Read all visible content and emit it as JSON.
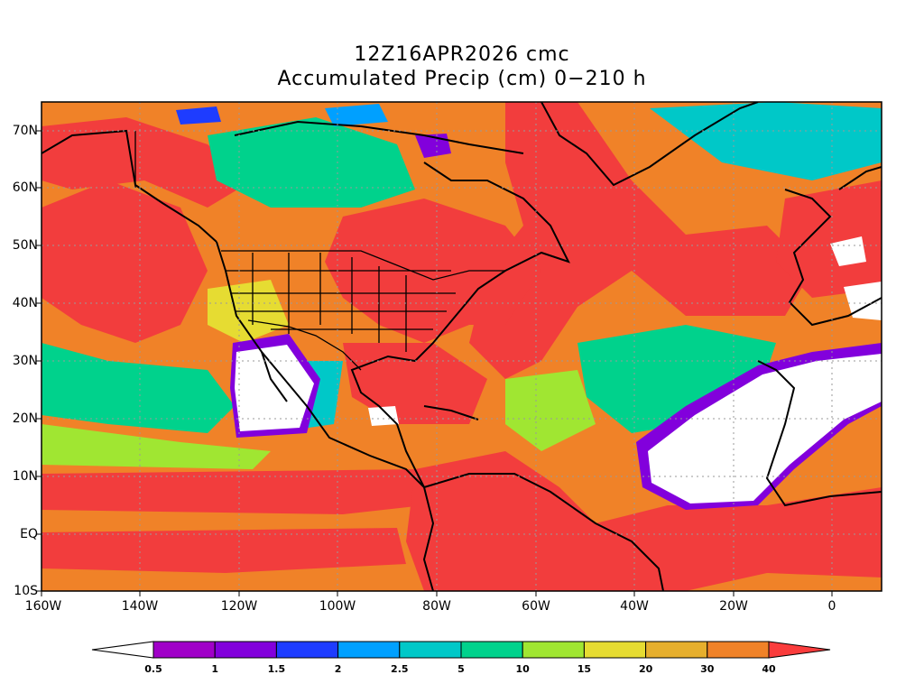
{
  "title": {
    "line1": "12Z16APR2026 cmc",
    "line2": "Accumulated Precip (cm) 0−210 h"
  },
  "axes": {
    "lat_labels": [
      "70N",
      "60N",
      "50N",
      "40N",
      "30N",
      "20N",
      "10N",
      "EQ",
      "10S"
    ],
    "lon_labels": [
      "160W",
      "140W",
      "120W",
      "100W",
      "80W",
      "60W",
      "40W",
      "20W",
      "0"
    ],
    "lat_range": [
      -10,
      75
    ],
    "lon_range": [
      -160,
      10
    ],
    "grid": "dotted"
  },
  "colorbar": {
    "labels": [
      "0.5",
      "1",
      "1.5",
      "2",
      "2.5",
      "5",
      "10",
      "15",
      "20",
      "30",
      "40"
    ],
    "colors": [
      "#a000c8",
      "#8200dc",
      "#1e3cff",
      "#00a0ff",
      "#00c8c8",
      "#00d28c",
      "#a0e632",
      "#e6dc32",
      "#e6af2d",
      "#f08228",
      "#fa3c3c"
    ],
    "below_color": "#ffffff",
    "above_color": "#fa3c3c"
  },
  "palette": {
    "red": "#f23d3d",
    "orange": "#f08228",
    "amber": "#e6af2d",
    "yellow": "#e6dc32",
    "lime": "#a0e632",
    "green": "#00d28c",
    "teal": "#00c8c8",
    "cyan": "#00a0ff",
    "blue": "#1e3cff",
    "purple": "#8200dc",
    "white": "#ffffff",
    "coast": "#000000"
  }
}
